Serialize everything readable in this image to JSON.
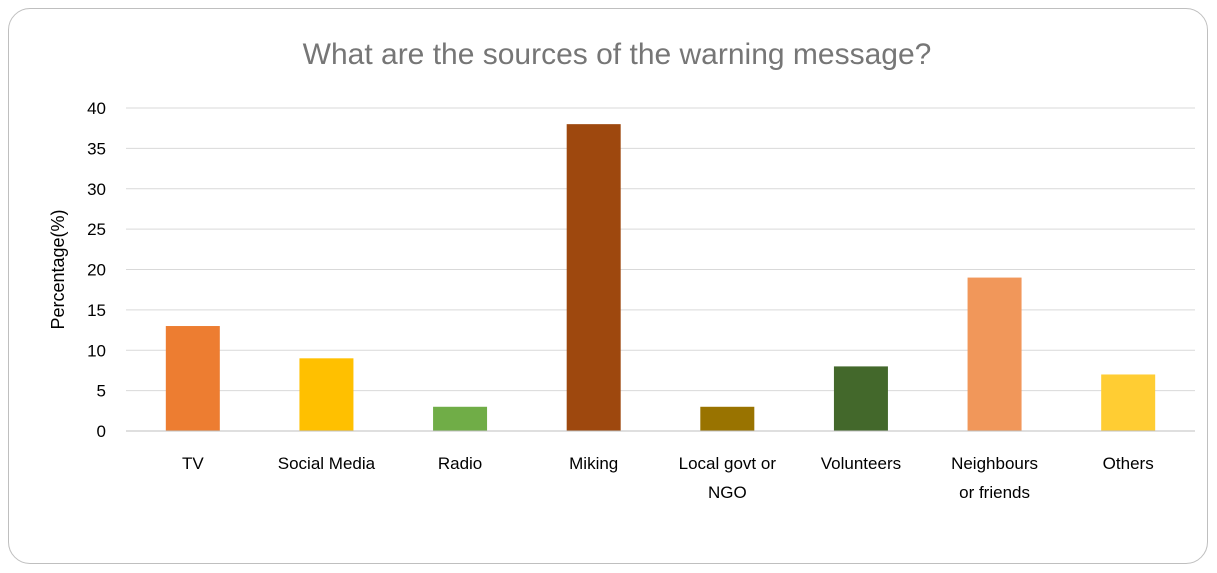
{
  "chart_data": {
    "type": "bar",
    "title": "What are the sources of the warning message?",
    "xlabel": "",
    "ylabel": "Percentage(%)",
    "ylim": [
      0,
      40
    ],
    "yticks": [
      0,
      5,
      10,
      15,
      20,
      25,
      30,
      35,
      40
    ],
    "grid": true,
    "legend": "none",
    "categories": [
      [
        "TV"
      ],
      [
        "Social Media"
      ],
      [
        "Radio"
      ],
      [
        "Miking"
      ],
      [
        "Local govt or",
        "NGO"
      ],
      [
        "Volunteers"
      ],
      [
        "Neighbours",
        "or friends"
      ],
      [
        "Others"
      ]
    ],
    "values": [
      13,
      9,
      3,
      38,
      3,
      8,
      19,
      7
    ],
    "colors": [
      "#ED7D31",
      "#FFC000",
      "#70AD47",
      "#9E480E",
      "#997300",
      "#43682B",
      "#F1975A",
      "#FFCD33"
    ]
  }
}
